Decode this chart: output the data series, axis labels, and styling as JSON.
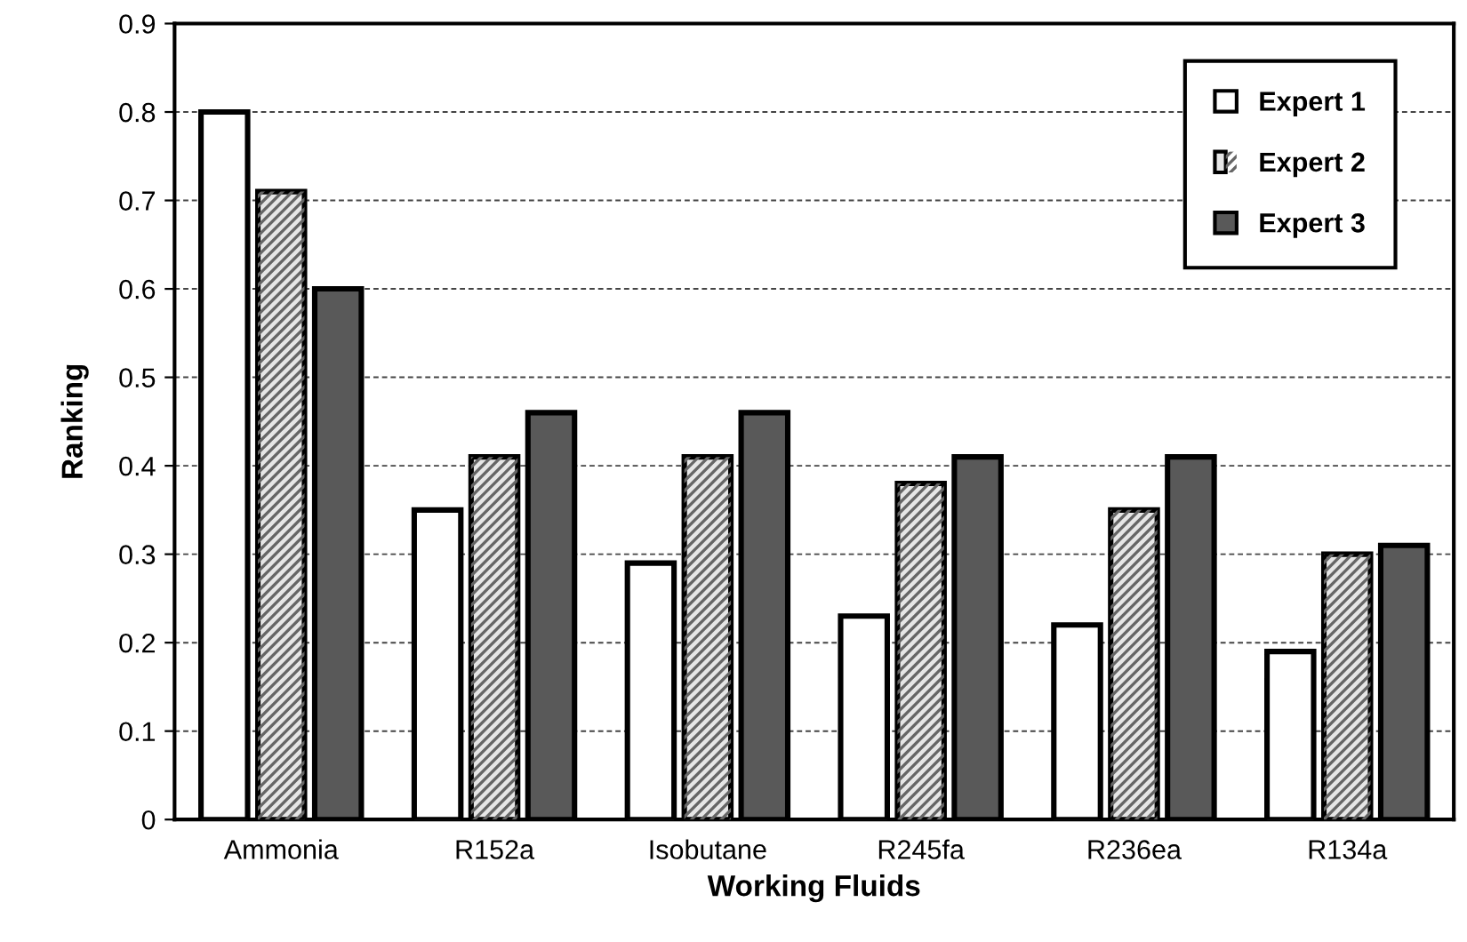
{
  "chart_data": {
    "type": "bar",
    "xlabel": "Working Fluids",
    "ylabel": "Ranking",
    "categories": [
      "Ammonia",
      "R152a",
      "Isobutane",
      "R245fa",
      "R236ea",
      "R134a"
    ],
    "series": [
      {
        "name": "Expert 1",
        "color": "#ffffff",
        "values": [
          0.8,
          0.35,
          0.29,
          0.23,
          0.22,
          0.19
        ]
      },
      {
        "name": "Expert 2",
        "color": "#e6e6e6",
        "values": [
          0.71,
          0.41,
          0.41,
          0.38,
          0.35,
          0.3
        ]
      },
      {
        "name": "Expert 3",
        "color": "#595959",
        "values": [
          0.6,
          0.46,
          0.46,
          0.41,
          0.41,
          0.31
        ]
      }
    ],
    "ylim": [
      0,
      0.9
    ],
    "yticks": [
      0,
      0.1,
      0.2,
      0.3,
      0.4,
      0.5,
      0.6,
      0.7,
      0.8,
      0.9
    ],
    "grid": "y",
    "legend": "top right"
  }
}
